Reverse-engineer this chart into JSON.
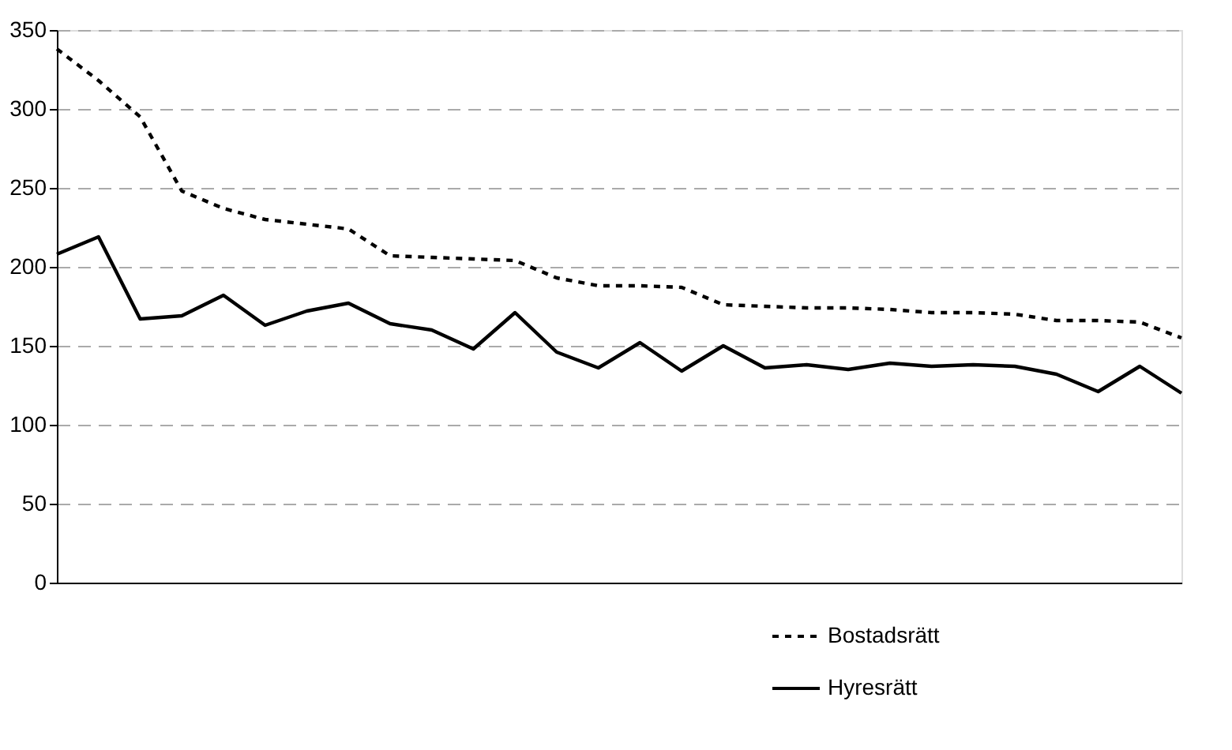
{
  "chart_data": {
    "type": "line",
    "categories": [
      null,
      null,
      null,
      null,
      null,
      null,
      null,
      null,
      null,
      null,
      null,
      null,
      null,
      null,
      null,
      null,
      null,
      null,
      null,
      null,
      null,
      null,
      null,
      null,
      null,
      null,
      null,
      null
    ],
    "series": [
      {
        "name": "Bostadsrätt",
        "color": "#000000",
        "line_style": "dotted",
        "values": [
          338,
          318,
          295,
          248,
          237,
          230,
          227,
          224,
          207,
          206,
          205,
          204,
          193,
          188,
          188,
          187,
          176,
          175,
          174,
          174,
          173,
          171,
          171,
          170,
          166,
          166,
          165,
          155
        ]
      },
      {
        "name": "Hyresrätt",
        "color": "#000000",
        "line_style": "solid",
        "values": [
          208,
          219,
          167,
          169,
          182,
          163,
          172,
          177,
          164,
          160,
          148,
          171,
          146,
          136,
          152,
          134,
          150,
          136,
          138,
          135,
          139,
          137,
          138,
          137,
          132,
          121,
          137,
          120
        ]
      }
    ],
    "ylim": [
      0,
      350
    ],
    "yticks": [
      0,
      50,
      100,
      150,
      200,
      250,
      300,
      350
    ],
    "grid": "y",
    "legend": "bottom right",
    "tick_labels": "y",
    "marker": "none"
  }
}
